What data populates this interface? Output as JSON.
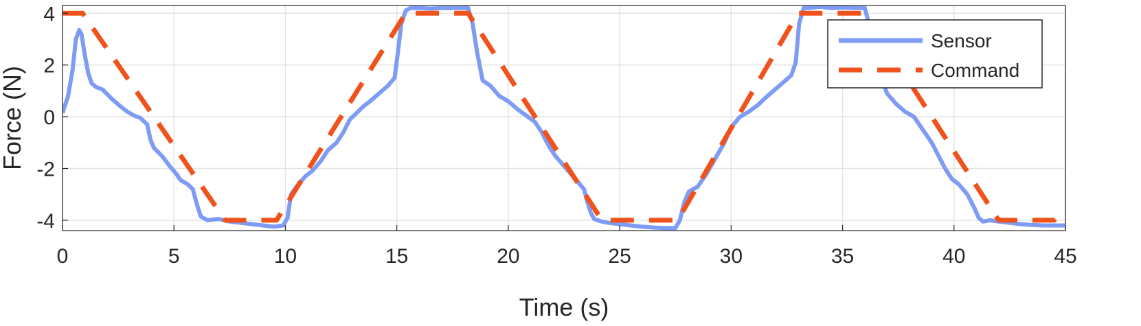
{
  "chart_data": {
    "type": "line",
    "title": "",
    "xlabel": "Time (s)",
    "ylabel": "Force (N)",
    "xlim": [
      0,
      45
    ],
    "ylim": [
      -4.4,
      4.3
    ],
    "xticks": [
      0,
      5,
      10,
      15,
      20,
      25,
      30,
      35,
      40,
      45
    ],
    "yticks": [
      -4,
      -2,
      0,
      2,
      4
    ],
    "xtick_labels": [
      "0",
      "5",
      "10",
      "15",
      "20",
      "25",
      "30",
      "35",
      "40",
      "45"
    ],
    "ytick_labels": [
      "-4",
      "-2",
      "0",
      "2",
      "4"
    ],
    "grid": true,
    "legend_position": "top-right",
    "series": [
      {
        "name": "Sensor",
        "style": "solid",
        "color": "#7f9cf5",
        "x": [
          0,
          0.25,
          0.45,
          0.6,
          0.75,
          0.85,
          1.0,
          1.15,
          1.3,
          1.5,
          1.8,
          2.2,
          2.6,
          2.9,
          3.2,
          3.5,
          3.8,
          3.95,
          4.1,
          4.5,
          4.8,
          5.1,
          5.3,
          5.6,
          5.85,
          6.0,
          6.2,
          6.5,
          7.0,
          7.5,
          8.0,
          8.5,
          9.0,
          9.5,
          9.9,
          10.1,
          10.25,
          10.5,
          10.9,
          11.2,
          11.6,
          11.9,
          12.3,
          12.6,
          12.9,
          13.2,
          13.5,
          13.8,
          14.2,
          14.6,
          14.9,
          15.05,
          15.2,
          15.4,
          15.6,
          16.0,
          16.5,
          17.0,
          17.5,
          18.0,
          18.2,
          18.4,
          18.6,
          18.85,
          19.2,
          19.6,
          20.0,
          20.4,
          20.8,
          21.2,
          21.5,
          21.8,
          22.1,
          22.5,
          22.8,
          23.1,
          23.4,
          23.55,
          23.7,
          23.85,
          24.0,
          24.2,
          24.5,
          25.0,
          25.5,
          26.0,
          26.5,
          27.0,
          27.5,
          27.7,
          27.9,
          28.1,
          28.5,
          28.9,
          29.3,
          29.7,
          30.0,
          30.4,
          30.8,
          31.2,
          31.5,
          31.9,
          32.3,
          32.7,
          32.9,
          33.05,
          33.25,
          33.5,
          34.0,
          34.5,
          35.0,
          35.5,
          36.0,
          36.3,
          36.6,
          37.0,
          37.4,
          37.8,
          38.2,
          38.6,
          39.0,
          39.3,
          39.6,
          39.9,
          40.2,
          40.6,
          40.9,
          41.1,
          41.3,
          41.6,
          42.0,
          42.5,
          43.0,
          43.5,
          44.0,
          44.5,
          45.0
        ],
        "y": [
          0.15,
          0.8,
          1.8,
          3.0,
          3.35,
          3.2,
          2.4,
          1.7,
          1.3,
          1.15,
          1.05,
          0.7,
          0.4,
          0.2,
          0.05,
          -0.05,
          -0.3,
          -0.9,
          -1.2,
          -1.55,
          -1.9,
          -2.2,
          -2.45,
          -2.6,
          -2.8,
          -3.3,
          -3.85,
          -4.0,
          -3.95,
          -4.05,
          -4.1,
          -4.15,
          -4.2,
          -4.25,
          -4.2,
          -3.9,
          -3.0,
          -2.7,
          -2.3,
          -2.1,
          -1.7,
          -1.3,
          -1.0,
          -0.6,
          -0.1,
          0.15,
          0.4,
          0.6,
          0.9,
          1.2,
          1.5,
          2.5,
          3.6,
          4.1,
          4.2,
          4.2,
          4.18,
          4.2,
          4.2,
          4.2,
          4.2,
          3.6,
          2.5,
          1.4,
          1.2,
          0.8,
          0.6,
          0.3,
          0.05,
          -0.2,
          -0.6,
          -1.1,
          -1.5,
          -1.9,
          -2.2,
          -2.5,
          -2.8,
          -3.3,
          -3.7,
          -3.95,
          -4.0,
          -4.05,
          -4.1,
          -4.15,
          -4.2,
          -4.25,
          -4.28,
          -4.3,
          -4.3,
          -4.0,
          -3.3,
          -2.9,
          -2.7,
          -2.2,
          -1.6,
          -1.0,
          -0.4,
          0.0,
          0.2,
          0.45,
          0.7,
          1.0,
          1.3,
          1.6,
          2.1,
          3.6,
          4.2,
          4.2,
          4.25,
          4.2,
          4.22,
          4.2,
          4.2,
          3.2,
          1.8,
          0.9,
          0.5,
          0.2,
          0.0,
          -0.5,
          -1.0,
          -1.5,
          -2.0,
          -2.4,
          -2.6,
          -3.0,
          -3.5,
          -3.9,
          -4.05,
          -4.0,
          -4.05,
          -4.1,
          -4.15,
          -4.18,
          -4.2,
          -4.2,
          -4.2
        ]
      },
      {
        "name": "Command",
        "style": "dashed",
        "color": "#f0521c",
        "x": [
          0,
          0.9,
          7.3,
          9.6,
          15.4,
          18.2,
          24.2,
          27.6,
          33.0,
          36.0,
          42.0,
          44.5,
          45.0
        ],
        "y": [
          4.0,
          4.0,
          -4.0,
          -4.0,
          4.0,
          4.0,
          -4.0,
          -4.0,
          4.0,
          4.0,
          -4.0,
          -4.0,
          -3.6
        ]
      }
    ]
  }
}
